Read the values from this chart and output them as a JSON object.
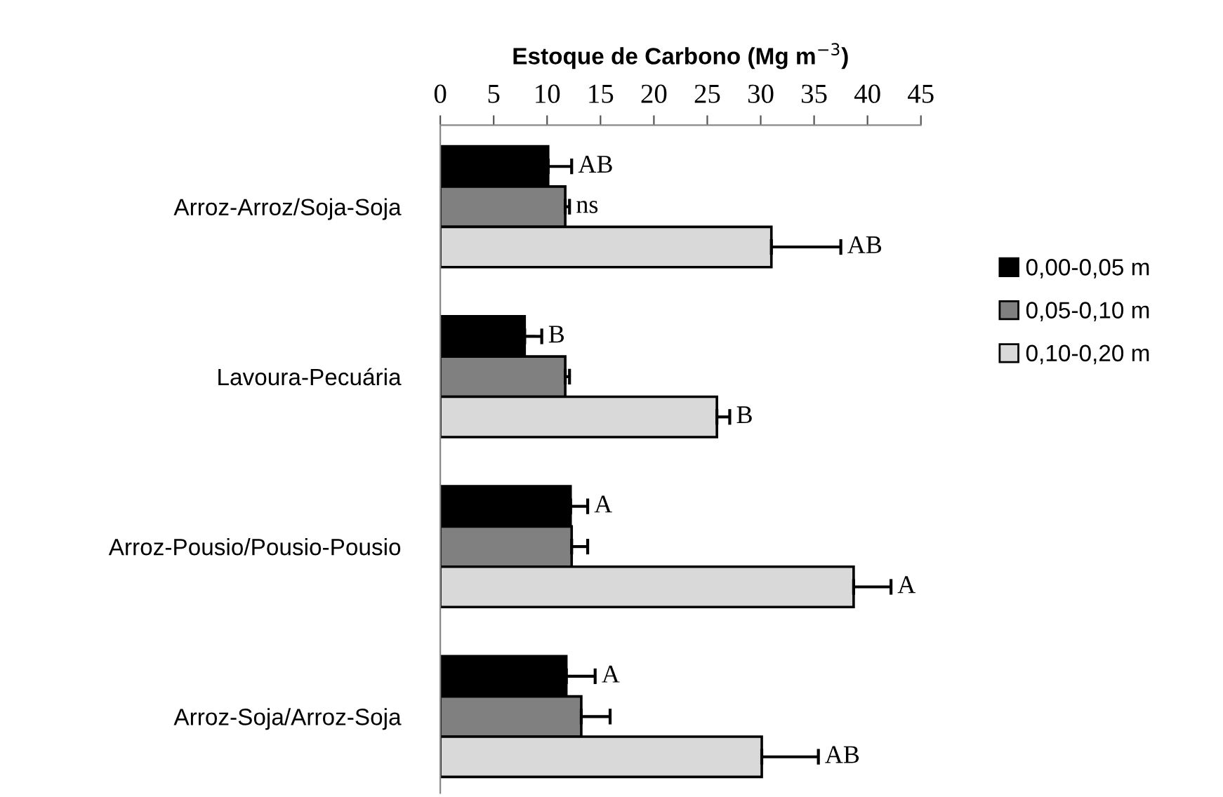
{
  "chart_data": {
    "type": "bar",
    "orientation": "horizontal",
    "xlabel": "Estoque de Carbono (Mg m$^{−3}$)",
    "categories": [
      "Arroz-Arroz/Soja-Soja",
      "Lavoura-Pecuária",
      "Arroz-Pousio/Pousio-Pousio",
      "Arroz-Soja/Arroz-Soja"
    ],
    "series": [
      {
        "name": "0,00-0,05 m",
        "color": "#000000",
        "values": [
          10.1,
          7.9,
          12.2,
          11.8
        ],
        "errors": [
          [
            10.1,
            12.3
          ],
          [
            7.9,
            9.5
          ],
          [
            12.2,
            13.8
          ],
          [
            11.8,
            14.5
          ]
        ],
        "value_labels": [
          "AB",
          "B",
          "A",
          "A"
        ]
      },
      {
        "name": "0,05-0,10 m",
        "color": "#808080",
        "values": [
          11.7,
          11.7,
          12.3,
          13.2
        ],
        "errors": [
          [
            11.7,
            12.1
          ],
          [
            11.7,
            12.1
          ],
          [
            12.3,
            13.8
          ],
          [
            13.2,
            15.9
          ]
        ],
        "value_labels": [
          "ns",
          null,
          null,
          null
        ]
      },
      {
        "name": "0,10-0,20 m",
        "color": "#d9d9d9",
        "values": [
          31.0,
          25.9,
          38.7,
          30.1
        ],
        "errors": [
          [
            31.0,
            37.5
          ],
          [
            25.9,
            27.1
          ],
          [
            38.7,
            42.2
          ],
          [
            30.1,
            35.4
          ]
        ],
        "value_labels": [
          "AB",
          "B",
          "A",
          "AB"
        ]
      }
    ],
    "xlim": [
      0,
      45
    ],
    "xticks": [
      0,
      5,
      10,
      15,
      20,
      25,
      30,
      35,
      40,
      45
    ],
    "grid": false,
    "legend": "right"
  }
}
